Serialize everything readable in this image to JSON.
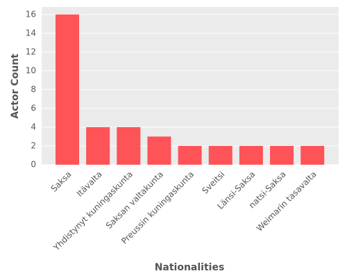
{
  "chart_data": {
    "type": "bar",
    "x_label": "Nationalities",
    "y_label": "Actor Count",
    "categories": [
      "Saksa",
      "Itävalta",
      "Yhdistynyt kuningaskunta",
      "Saksan valtakunta",
      "Preussin kuningaskunta",
      "Sveitsi",
      "Länsi-Saksa",
      "natsi-Saksa",
      "Weimarin tasavalta"
    ],
    "values": [
      16,
      4,
      4,
      3,
      2,
      2,
      2,
      2,
      2
    ],
    "color": "#fe5357",
    "ylim": [
      0,
      16.8
    ],
    "yticks": [
      0,
      2,
      4,
      6,
      8,
      10,
      12,
      14,
      16
    ],
    "grid": true
  }
}
